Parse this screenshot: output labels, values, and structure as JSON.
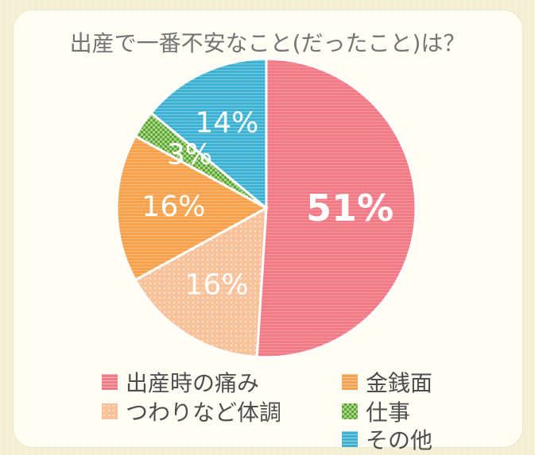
{
  "chart_data": {
    "type": "pie",
    "title": "出産で一番不安なこと(だったこと)は？",
    "slices": [
      {
        "label": "出産時の痛み",
        "value": 51,
        "display": "51%",
        "color": "#f07a86",
        "pattern": "stripes"
      },
      {
        "label": "つわりなど体調",
        "value": 16,
        "display": "16%",
        "color": "#f8c29a",
        "pattern": "dots"
      },
      {
        "label": "金銭面",
        "value": 16,
        "display": "16%",
        "color": "#f7a14e",
        "pattern": "stripes"
      },
      {
        "label": "仕事",
        "value": 3,
        "display": "3%",
        "color": "#7fbf55",
        "pattern": "checker"
      },
      {
        "label": "その他",
        "value": 14,
        "display": "14%",
        "color": "#3fb0d0",
        "pattern": "stripes"
      }
    ],
    "legend": [
      {
        "label": "出産時の痛み",
        "color": "#f07a86",
        "pattern": "stripes"
      },
      {
        "label": "金銭面",
        "color": "#f7a14e",
        "pattern": "stripes"
      },
      {
        "label": "つわりなど体調",
        "color": "#f8c29a",
        "pattern": "dots"
      },
      {
        "label": "仕事",
        "color": "#7fbf55",
        "pattern": "checker"
      },
      {
        "label": "その他",
        "color": "#3fb0d0",
        "pattern": "stripes"
      }
    ],
    "legend_placement": "bottom"
  }
}
